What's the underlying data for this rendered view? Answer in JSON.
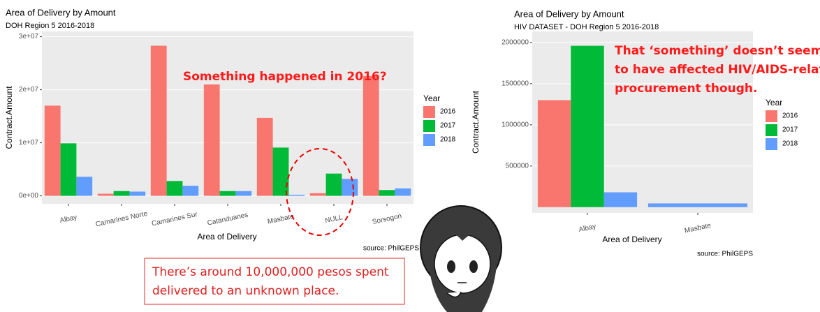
{
  "chart_data": [
    {
      "type": "bar",
      "title": "Area of Delivery by Amount",
      "subtitle": "DOH Region 5 2016-2018",
      "x_label": "Area of Delivery",
      "y_label": "Contract.Amount",
      "legend_title": "Year",
      "source": "source: PhilGEPS",
      "categories": [
        "Albay",
        "Camarines Norte",
        "Camarines Sur",
        "Catanduanes",
        "Masbate",
        "NULL",
        "Sorsogon"
      ],
      "series": [
        {
          "name": "2016",
          "color": "#f8766d",
          "values": [
            17000000,
            400000,
            28300000,
            21000000,
            14700000,
            500000,
            22600000
          ]
        },
        {
          "name": "2017",
          "color": "#00ba38",
          "values": [
            9900000,
            900000,
            2800000,
            900000,
            9100000,
            4200000,
            1100000
          ]
        },
        {
          "name": "2018",
          "color": "#619cff",
          "values": [
            3600000,
            800000,
            1900000,
            900000,
            200000,
            3200000,
            1400000
          ]
        }
      ],
      "ylim": [
        -1500000,
        31000000
      ],
      "yticks": [
        {
          "value": 0,
          "label": "0e+00"
        },
        {
          "value": 10000000,
          "label": "1e+07"
        },
        {
          "value": 20000000,
          "label": "2e+07"
        },
        {
          "value": 30000000,
          "label": "3e+07"
        }
      ],
      "grid": true,
      "legend": "right",
      "annotations": [
        "Something happened in 2016?"
      ],
      "callout": [
        "There’s around 10,000,000 pesos spent",
        "delivered to an unknown place."
      ]
    },
    {
      "type": "bar",
      "title": "Area of Delivery by Amount",
      "subtitle": "HIV DATASET - DOH Region 5 2016-2018",
      "x_label": "Area of Delivery",
      "y_label": "Contract.Amount",
      "legend_title": "Year",
      "source": "source: PhilGEPS",
      "categories": [
        "Albay",
        "Masbate"
      ],
      "series": [
        {
          "name": "2016",
          "color": "#f8766d",
          "values": [
            1300000,
            null
          ]
        },
        {
          "name": "2017",
          "color": "#00ba38",
          "values": [
            1960000,
            null
          ]
        },
        {
          "name": "2018",
          "color": "#619cff",
          "values": [
            180000,
            45000
          ]
        }
      ],
      "ylim": [
        -70000,
        2135000
      ],
      "yticks": [
        500000,
        1000000,
        1500000,
        2000000
      ],
      "grid": true,
      "legend": "right",
      "annotations": [
        "That ‘something’ doesn’t seem",
        "to have affected HIV/AIDS-related",
        "procurement though."
      ]
    }
  ]
}
